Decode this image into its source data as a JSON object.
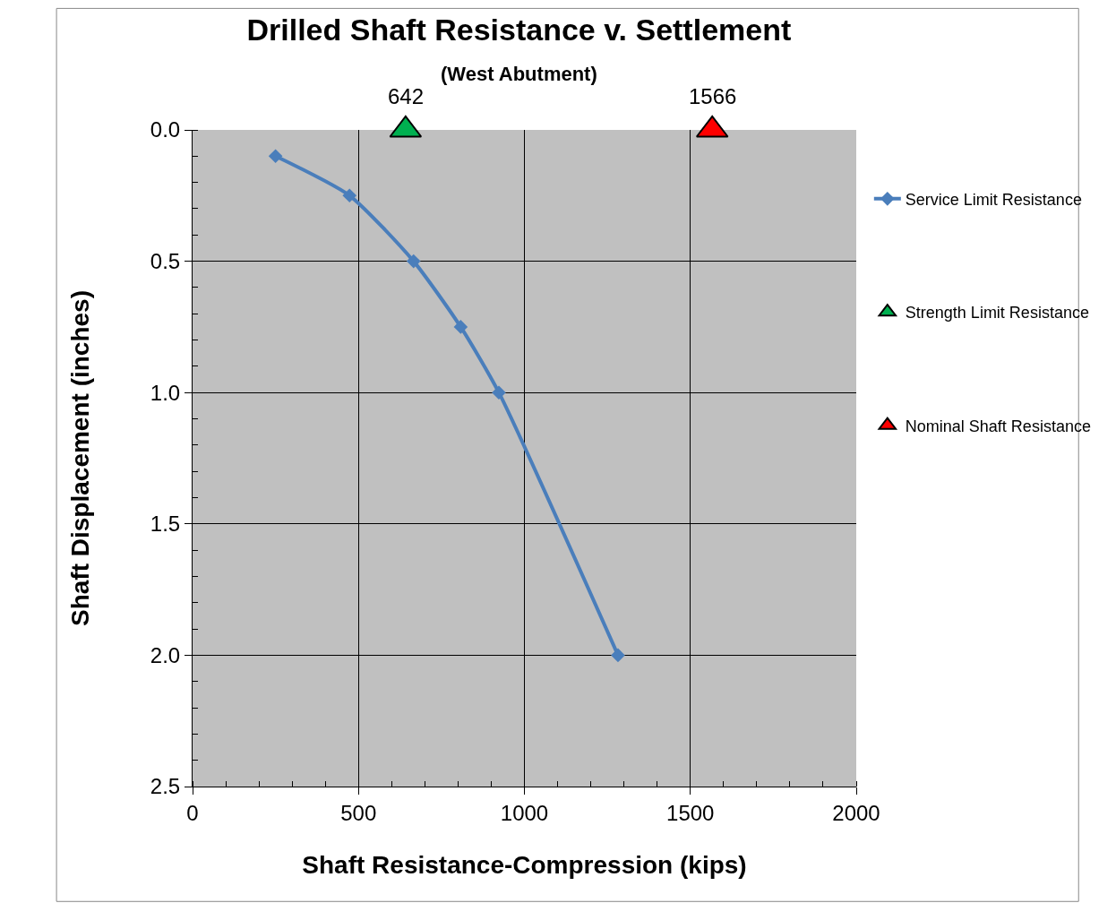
{
  "chart_data": {
    "type": "line",
    "title": "Drilled Shaft Resistance v. Settlement",
    "subtitle": "(West Abutment)",
    "xlabel": "Shaft Resistance-Compression (kips)",
    "ylabel": "Shaft Displacement (inches)",
    "xlim": [
      0,
      2000
    ],
    "xticks": [
      0,
      500,
      1000,
      1500,
      2000
    ],
    "ylim": [
      2.5,
      0
    ],
    "yticks": [
      {
        "value": 0,
        "label": "0.0"
      },
      0.5,
      {
        "value": 1,
        "label": "1.0"
      },
      1.5,
      {
        "value": 2,
        "label": "2.0"
      },
      2.5
    ],
    "grid": true,
    "legend": "right",
    "series": [
      {
        "name": "Service Limit Resistance",
        "color": "#4a7ebb",
        "marker": "diamond",
        "x": [
          250,
          473,
          666,
          808,
          923,
          1282
        ],
        "values": [
          0.1,
          0.25,
          0.5,
          0.75,
          1.0,
          2.0
        ]
      },
      {
        "name": "Strength Limit Resistance",
        "type": "scatter",
        "color": "#00b050",
        "marker": "triangle",
        "x": [
          642
        ],
        "values": [
          0
        ]
      },
      {
        "name": "Nominal Shaft Resistance",
        "type": "scatter",
        "color": "#ff0000",
        "marker": "triangle",
        "x": [
          1566
        ],
        "values": [
          0
        ]
      }
    ],
    "annotations": [
      {
        "text": "642",
        "x": 642,
        "y": 0
      },
      {
        "text": "1566",
        "x": 1566,
        "y": 0
      }
    ]
  }
}
